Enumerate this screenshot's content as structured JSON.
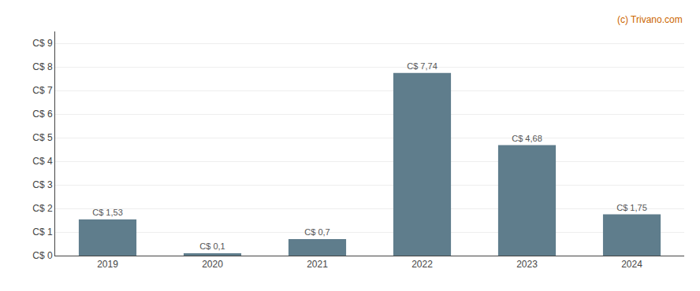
{
  "chart_data": {
    "type": "bar",
    "categories": [
      "2019",
      "2020",
      "2021",
      "2022",
      "2023",
      "2024"
    ],
    "values": [
      1.53,
      0.1,
      0.7,
      7.74,
      4.68,
      1.75
    ],
    "value_labels": [
      "C$ 1,53",
      "C$ 0,1",
      "C$ 0,7",
      "C$ 7,74",
      "C$ 4,68",
      "C$ 1,75"
    ],
    "data_labels": true,
    "color": "#5f7d8c",
    "ylim": [
      0,
      9.5
    ],
    "yticks": [
      {
        "value": 0,
        "label": "C$ 0"
      },
      {
        "value": 1,
        "label": "C$ 1"
      },
      {
        "value": 2,
        "label": "C$ 2"
      },
      {
        "value": 3,
        "label": "C$ 3"
      },
      {
        "value": 4,
        "label": "C$ 4"
      },
      {
        "value": 5,
        "label": "C$ 5"
      },
      {
        "value": 6,
        "label": "C$ 6"
      },
      {
        "value": 7,
        "label": "C$ 7"
      },
      {
        "value": 8,
        "label": "C$ 8"
      },
      {
        "value": 9,
        "label": "C$ 9"
      }
    ],
    "grid": true,
    "annotations": [
      {
        "text": "(c) Trivano.com",
        "color": "#cc6600"
      }
    ]
  }
}
